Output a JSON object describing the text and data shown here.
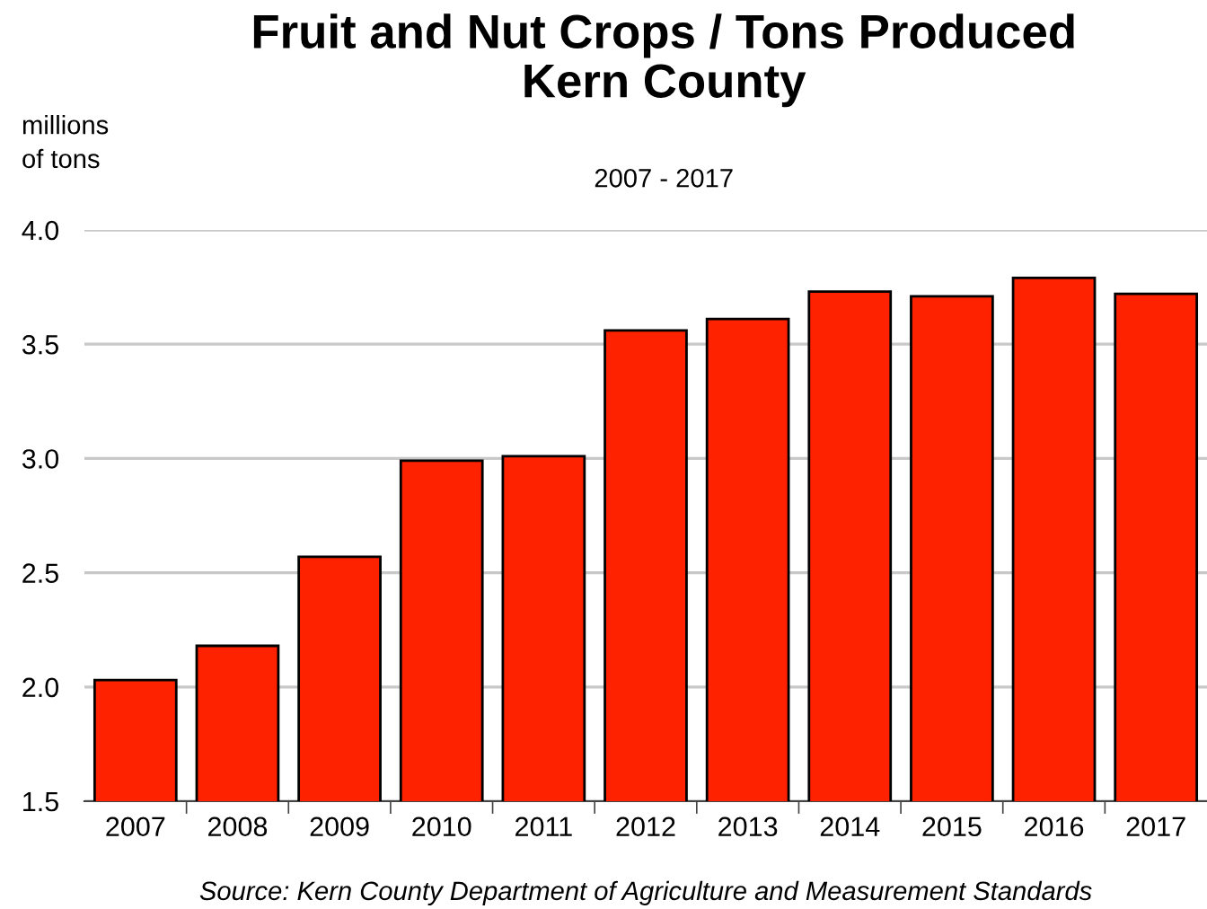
{
  "chart_data": {
    "type": "bar",
    "title": "Fruit and Nut Crops / Tons Produced\nKern County",
    "subtitle": "2007 - 2017",
    "ylabel": "millions\nof tons",
    "categories": [
      "2007",
      "2008",
      "2009",
      "2010",
      "2011",
      "2012",
      "2013",
      "2014",
      "2015",
      "2016",
      "2017"
    ],
    "values": [
      2.03,
      2.18,
      2.57,
      2.99,
      3.01,
      3.56,
      3.61,
      3.73,
      3.71,
      3.79,
      3.72
    ],
    "color": "#ff2200",
    "ylim": [
      1.5,
      4.0
    ],
    "yticks": [
      {
        "value": 1.5,
        "label": "1.5"
      },
      {
        "value": 2.0,
        "label": "2.0"
      },
      {
        "value": 2.5,
        "label": "2.5"
      },
      {
        "value": 3.0,
        "label": "3.0"
      },
      {
        "value": 3.5,
        "label": "3.5"
      },
      {
        "value": 4.0,
        "label": "4.0"
      }
    ],
    "grid": "y",
    "annotations": [
      "Source: Kern County Department of Agriculture and Measurement Standards"
    ]
  }
}
